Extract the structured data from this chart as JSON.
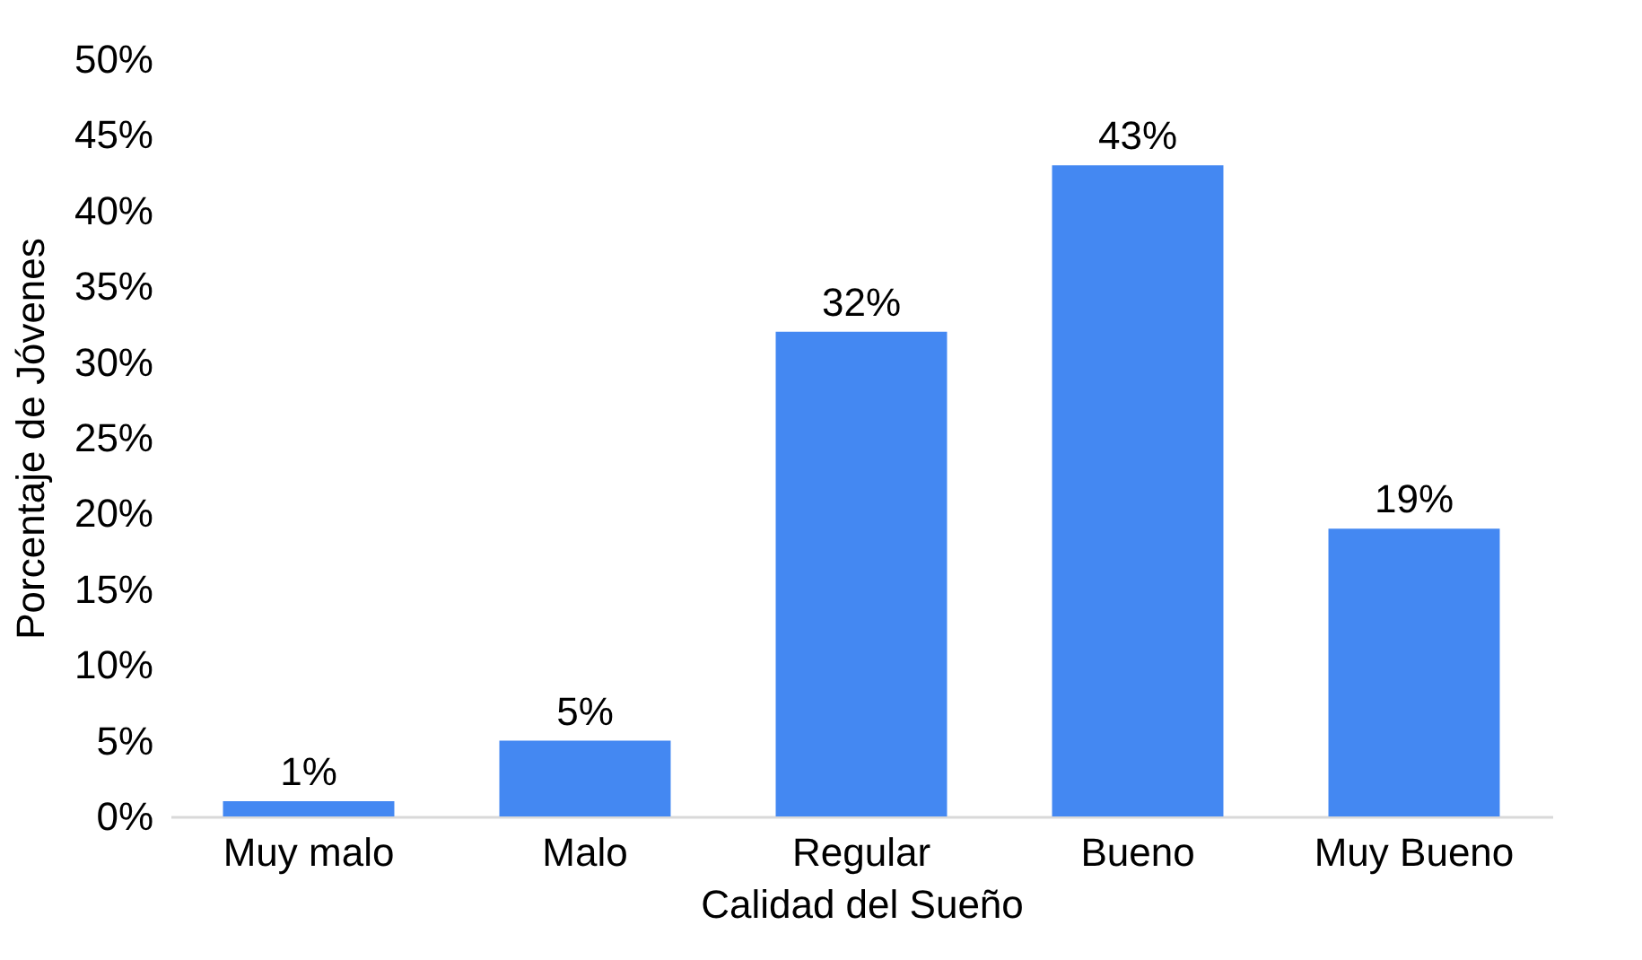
{
  "chart_data": {
    "type": "bar",
    "xlabel": "Calidad del Sueño",
    "ylabel": "Porcentaje de Jóvenes",
    "categories": [
      "Muy malo",
      "Malo",
      "Regular",
      "Bueno",
      "Muy Bueno"
    ],
    "values": [
      1,
      5,
      32,
      43,
      19
    ],
    "value_labels": [
      "1%",
      "5%",
      "32%",
      "43%",
      "19%"
    ],
    "color": "#4488f2",
    "ylim": [
      0,
      50
    ],
    "yticks": [
      {
        "value": 0,
        "label": "0%"
      },
      {
        "value": 5,
        "label": "5%"
      },
      {
        "value": 10,
        "label": "10%"
      },
      {
        "value": 15,
        "label": "15%"
      },
      {
        "value": 20,
        "label": "20%"
      },
      {
        "value": 25,
        "label": "25%"
      },
      {
        "value": 30,
        "label": "30%"
      },
      {
        "value": 35,
        "label": "35%"
      },
      {
        "value": 40,
        "label": "40%"
      },
      {
        "value": 45,
        "label": "45%"
      },
      {
        "value": 50,
        "label": "50%"
      }
    ],
    "grid": false
  }
}
